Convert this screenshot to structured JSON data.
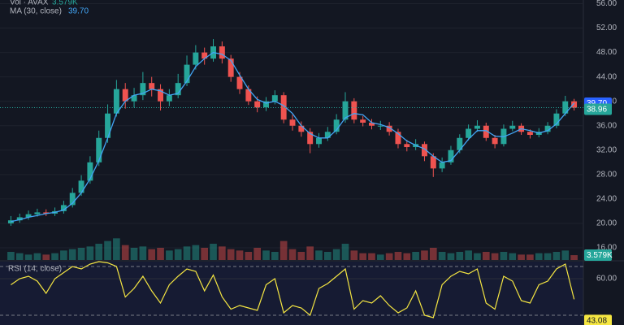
{
  "chart_data": {
    "type": "candlestick",
    "up_color": "#26a69a",
    "down_color": "#ef5350",
    "grid": true,
    "ylim": [
      14,
      56.6
    ],
    "yticks": [
      {
        "value": 16,
        "label": "16.00"
      },
      {
        "value": 20,
        "label": "20.00"
      },
      {
        "value": 24,
        "label": "24.00"
      },
      {
        "value": 28,
        "label": "28.00"
      },
      {
        "value": 32,
        "label": "32.00"
      },
      {
        "value": 36,
        "label": "36.00"
      },
      {
        "value": 40,
        "label": "40.00"
      },
      {
        "value": 44,
        "label": "44.00"
      },
      {
        "value": 48,
        "label": "48.00"
      },
      {
        "value": 52,
        "label": "52.00"
      },
      {
        "value": 56,
        "label": "56.00"
      }
    ],
    "candles": {
      "open": [
        20,
        20.5,
        21,
        21.5,
        21.8,
        21.6,
        22,
        23,
        25,
        27,
        30,
        34,
        38,
        42,
        40,
        41,
        43,
        42,
        40,
        41,
        43,
        46,
        48,
        47,
        49,
        47,
        44,
        42,
        40,
        39,
        40,
        41,
        37,
        36,
        35,
        33,
        34,
        35,
        37,
        40,
        37,
        36.5,
        36,
        36,
        35,
        33,
        32.5,
        33,
        31,
        29,
        30,
        32,
        34,
        35.5,
        36,
        34,
        33,
        35.5,
        36,
        35,
        34.5,
        35,
        36,
        38,
        40
      ],
      "high": [
        21.2,
        21.6,
        22.1,
        22.4,
        22.3,
        22.6,
        23.7,
        25.8,
        27.9,
        31,
        35.2,
        39.5,
        43.5,
        43,
        42.2,
        44.8,
        44,
        42.8,
        42,
        44.5,
        47.5,
        49.2,
        48.8,
        50.2,
        49.8,
        47.6,
        44.8,
        42.6,
        40.8,
        40.7,
        41.8,
        41.5,
        37.8,
        36.7,
        35.6,
        34.8,
        35.8,
        37.9,
        41.5,
        40.5,
        37.6,
        37.1,
        36.8,
        36.6,
        35.5,
        33.7,
        33.8,
        33.4,
        31.5,
        30.8,
        32.7,
        34.6,
        36.2,
        36.9,
        36.5,
        34.5,
        36.2,
        36.8,
        36.4,
        35.4,
        35.6,
        36.6,
        38.7,
        40.9,
        40.4
      ],
      "low": [
        19.6,
        20.1,
        20.6,
        21.1,
        21.2,
        21.2,
        21.6,
        22.6,
        24.5,
        26.5,
        29.4,
        33.2,
        37.5,
        38.8,
        39,
        40.2,
        40.8,
        38.5,
        39.2,
        40.5,
        42.5,
        45.2,
        46,
        46.5,
        46.2,
        43.2,
        41.2,
        39.4,
        38.2,
        38.4,
        39.5,
        36.4,
        35.2,
        34.2,
        31.5,
        32.4,
        33.5,
        34.6,
        36.5,
        36.4,
        35.9,
        35.4,
        35.3,
        34.4,
        32.3,
        31.8,
        32,
        30.2,
        27.6,
        28.4,
        29.6,
        31.5,
        33.6,
        35,
        33.5,
        32.3,
        32.6,
        35.1,
        34.5,
        33.9,
        34.1,
        34.6,
        35.6,
        37.6,
        38.5
      ],
      "close": [
        20.5,
        21,
        21.5,
        21.8,
        21.6,
        22,
        23,
        25,
        27,
        30,
        34,
        38,
        42,
        40,
        41,
        43,
        42,
        40,
        41,
        43,
        46,
        48,
        47,
        49,
        47,
        44,
        42,
        40,
        39,
        40,
        41,
        37,
        36,
        35,
        33,
        34,
        35,
        37,
        40,
        37,
        36.5,
        36,
        36,
        35,
        33,
        32.5,
        33,
        31,
        29,
        30,
        32,
        34,
        35.5,
        36,
        34,
        33,
        35.5,
        36,
        35,
        34.5,
        35,
        36,
        38,
        40,
        38.96
      ]
    },
    "last_close": 38.96,
    "ma": {
      "name": "MA (30, close)",
      "color": "#42a5f5",
      "values": [
        20.3,
        20.6,
        21,
        21.3,
        21.6,
        21.8,
        22.2,
        23.3,
        25,
        27.3,
        30.3,
        34,
        38,
        40,
        41,
        41.3,
        42,
        41.7,
        41,
        41.3,
        43.3,
        45.7,
        47,
        48,
        47.7,
        46.7,
        44.3,
        42,
        40.3,
        39.7,
        40,
        39.3,
        38,
        36,
        34.7,
        34,
        34,
        35.3,
        37.3,
        38,
        37.8,
        36.5,
        36.2,
        35.7,
        34.7,
        33.5,
        32.8,
        32.2,
        31,
        30,
        30.3,
        32,
        33.8,
        35.2,
        35.2,
        34.3,
        34.2,
        34.8,
        35.5,
        35.2,
        34.8,
        35.2,
        36.3,
        38,
        39.7
      ],
      "last_label": "39.70"
    },
    "volume": {
      "name": "Vol · AVAX",
      "ylim": [
        0,
        30
      ],
      "values": [
        6,
        5,
        4,
        5,
        4,
        5,
        7,
        8,
        9,
        10,
        12,
        14,
        16,
        11,
        9,
        10,
        8,
        9,
        7,
        8,
        10,
        11,
        9,
        12,
        10,
        8,
        7,
        6,
        9,
        7,
        6,
        14,
        8,
        6,
        10,
        7,
        6,
        8,
        12,
        7,
        5,
        5,
        4,
        5,
        6,
        5,
        6,
        7,
        9,
        6,
        5,
        6,
        7,
        5,
        6,
        5,
        6,
        5,
        4,
        4,
        5,
        5,
        6,
        7,
        3.579
      ],
      "last_label": "3.579K"
    },
    "rsi": {
      "name": "RSI (14, close)",
      "color": "#f5e642",
      "ylim": [
        22,
        74
      ],
      "yticks": [
        {
          "value": 60,
          "label": "60.00"
        }
      ],
      "bands": [
        70,
        30
      ],
      "values": [
        55,
        60,
        62,
        58,
        48,
        60,
        65,
        70,
        68,
        72,
        74,
        73,
        70,
        45,
        52,
        62,
        50,
        40,
        55,
        62,
        68,
        66,
        50,
        63,
        45,
        35,
        38,
        36,
        34,
        55,
        60,
        32,
        38,
        36,
        30,
        52,
        56,
        62,
        68,
        35,
        42,
        40,
        46,
        38,
        32,
        36,
        50,
        30,
        28,
        55,
        62,
        66,
        64,
        68,
        40,
        35,
        62,
        58,
        42,
        40,
        55,
        58,
        68,
        72,
        43.08
      ]
    }
  }
}
